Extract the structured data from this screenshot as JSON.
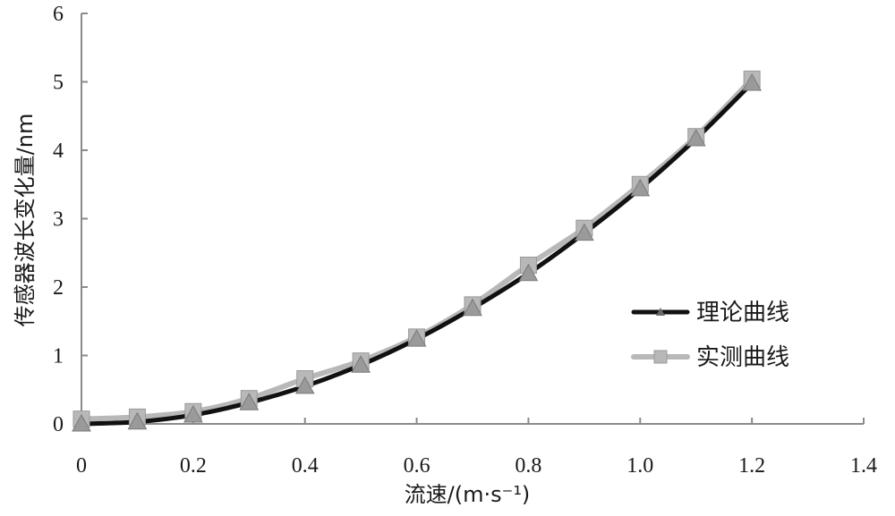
{
  "chart_data": {
    "type": "line",
    "xlabel": "流速/(m·s⁻¹)",
    "ylabel": "传感器波长变化量/nm",
    "xlim": [
      0,
      1.4
    ],
    "ylim": [
      0,
      6
    ],
    "xticks": [
      "0",
      "0.2",
      "0.4",
      "0.6",
      "0.8",
      "1.0",
      "1.2",
      "1.4"
    ],
    "yticks": [
      "0",
      "1",
      "2",
      "3",
      "4",
      "5",
      "6"
    ],
    "grid": false,
    "legend_position": "right",
    "series": [
      {
        "name": "理论曲线",
        "color": "#111111",
        "marker": "triangle",
        "x": [
          0,
          0.1,
          0.2,
          0.3,
          0.4,
          0.5,
          0.6,
          0.7,
          0.8,
          0.9,
          1.0,
          1.1,
          1.2
        ],
        "y": [
          0,
          0.03,
          0.13,
          0.31,
          0.55,
          0.86,
          1.24,
          1.69,
          2.2,
          2.79,
          3.44,
          4.17,
          4.98
        ]
      },
      {
        "name": "实测曲线",
        "color": "#b8b8b8",
        "marker": "square",
        "x": [
          0,
          0.1,
          0.2,
          0.3,
          0.4,
          0.5,
          0.6,
          0.7,
          0.8,
          0.9,
          1.0,
          1.1,
          1.2
        ],
        "y": [
          0.07,
          0.1,
          0.18,
          0.37,
          0.66,
          0.92,
          1.27,
          1.74,
          2.32,
          2.86,
          3.5,
          4.2,
          5.04
        ]
      }
    ]
  }
}
